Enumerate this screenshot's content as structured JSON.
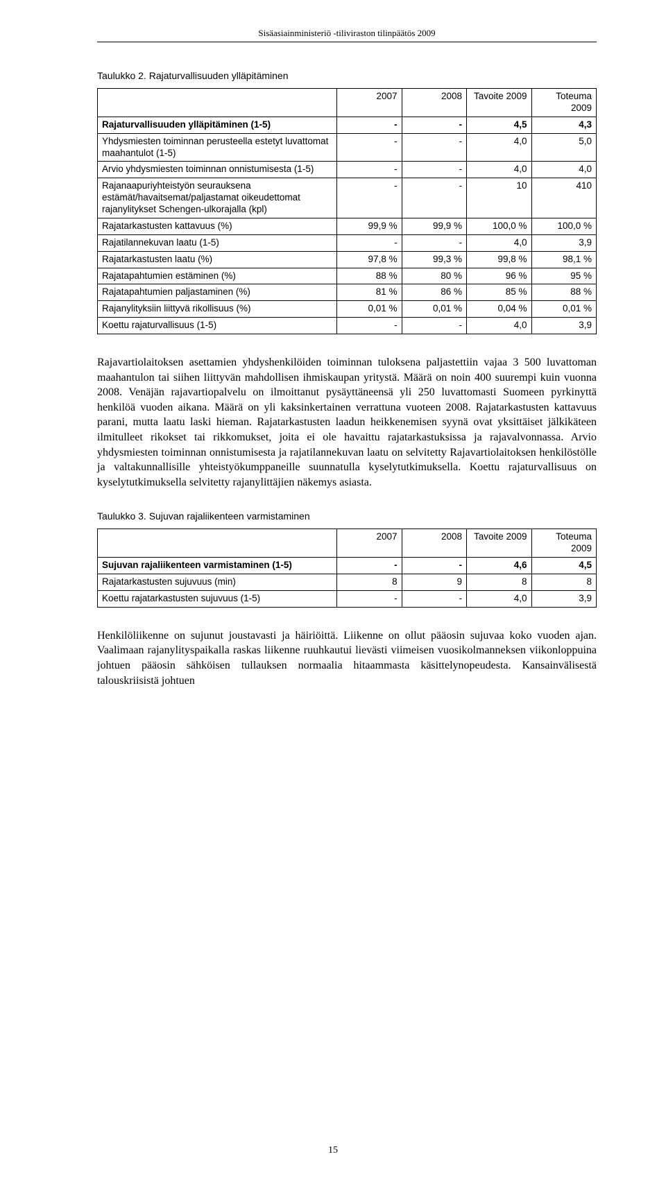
{
  "header": "Sisäasiainministeriö -tiliviraston tilinpäätös 2009",
  "page_number": "15",
  "table2": {
    "caption": "Taulukko 2. Rajaturvallisuuden ylläpitäminen",
    "headers": [
      "",
      "2007",
      "2008",
      "Tavoite 2009",
      "Toteuma 2009"
    ],
    "rows": [
      {
        "bold": true,
        "cells": [
          "Rajaturvallisuuden ylläpitäminen (1-5)",
          "-",
          "-",
          "4,5",
          "4,3"
        ]
      },
      {
        "bold": false,
        "cells": [
          "Yhdysmiesten toiminnan perusteella estetyt luvattomat maahantulot (1-5)",
          "-",
          "-",
          "4,0",
          "5,0"
        ]
      },
      {
        "bold": false,
        "cells": [
          "Arvio yhdysmiesten toiminnan onnistumisesta (1-5)",
          "-",
          "-",
          "4,0",
          "4,0"
        ]
      },
      {
        "bold": false,
        "cells": [
          "Rajanaapuriyhteistyön seurauksena estämät/havaitsemat/paljastamat oikeudettomat rajanylitykset Schengen-ulkorajalla (kpl)",
          "-",
          "-",
          "10",
          "410"
        ]
      },
      {
        "bold": false,
        "cells": [
          "Rajatarkastusten kattavuus (%)",
          "99,9 %",
          "99,9 %",
          "100,0 %",
          "100,0 %"
        ]
      },
      {
        "bold": false,
        "cells": [
          "Rajatilannekuvan laatu (1-5)",
          "-",
          "-",
          "4,0",
          "3,9"
        ]
      },
      {
        "bold": false,
        "cells": [
          "Rajatarkastusten laatu (%)",
          "97,8 %",
          "99,3 %",
          "99,8 %",
          "98,1 %"
        ]
      },
      {
        "bold": false,
        "cells": [
          "Rajatapahtumien estäminen (%)",
          "88 %",
          "80 %",
          "96 %",
          "95 %"
        ]
      },
      {
        "bold": false,
        "cells": [
          "Rajatapahtumien paljastaminen (%)",
          "81 %",
          "86 %",
          "85 %",
          "88 %"
        ]
      },
      {
        "bold": false,
        "cells": [
          "Rajanylityksiin liittyvä rikollisuus (%)",
          "0,01 %",
          "0,01 %",
          "0,04 %",
          "0,01 %"
        ]
      },
      {
        "bold": false,
        "cells": [
          "Koettu rajaturvallisuus (1-5)",
          "-",
          "-",
          "4,0",
          "3,9"
        ]
      }
    ]
  },
  "para1": "Rajavartiolaitoksen asettamien yhdyshenkilöiden toiminnan tuloksena paljastettiin vajaa 3 500 luvattoman maahantulon tai siihen liittyvän mahdollisen ihmiskaupan yritystä. Määrä on noin 400 suurempi kuin vuonna 2008. Venäjän rajavartiopalvelu on ilmoittanut pysäyttäneensä yli 250 luvattomasti Suomeen pyrkinyttä henkilöä vuoden aikana. Määrä on yli kaksinkertainen verrattuna vuoteen 2008. Rajatarkastusten kattavuus parani, mutta laatu laski hieman. Rajatarkastusten laadun heikkenemisen syynä ovat yksittäiset jälkikäteen ilmitulleet rikokset tai rikkomukset, joita ei ole havaittu rajatarkastuksissa ja rajavalvonnassa. Arvio yhdysmiesten toiminnan onnistumisesta ja rajatilannekuvan laatu on selvitetty Rajavartiolaitoksen henkilöstölle ja valtakunnallisille yhteistyökumppaneille suunnatulla kyselytutkimuksella. Koettu rajaturvallisuus on kyselytutkimuksella selvitetty rajanylittäjien näkemys asiasta.",
  "table3": {
    "caption": "Taulukko 3. Sujuvan rajaliikenteen varmistaminen",
    "headers": [
      "",
      "2007",
      "2008",
      "Tavoite 2009",
      "Toteuma 2009"
    ],
    "rows": [
      {
        "bold": true,
        "cells": [
          "Sujuvan rajaliikenteen varmistaminen (1-5)",
          "-",
          "-",
          "4,6",
          "4,5"
        ]
      },
      {
        "bold": false,
        "cells": [
          "Rajatarkastusten sujuvuus (min)",
          "8",
          "9",
          "8",
          "8"
        ]
      },
      {
        "bold": false,
        "cells": [
          "Koettu rajatarkastusten sujuvuus (1-5)",
          "-",
          "-",
          "4,0",
          "3,9"
        ]
      }
    ]
  },
  "para2": "Henkilöliikenne on sujunut joustavasti ja häiriöittä. Liikenne on ollut pääosin sujuvaa koko vuoden ajan. Vaalimaan rajanylityspaikalla raskas liikenne ruuhkautui lievästi viimeisen vuosikolmanneksen viikonloppuina johtuen pääosin sähköisen tullauksen normaalia hitaammasta käsittelynopeudesta. Kansainvälisestä talouskriisistä johtuen"
}
